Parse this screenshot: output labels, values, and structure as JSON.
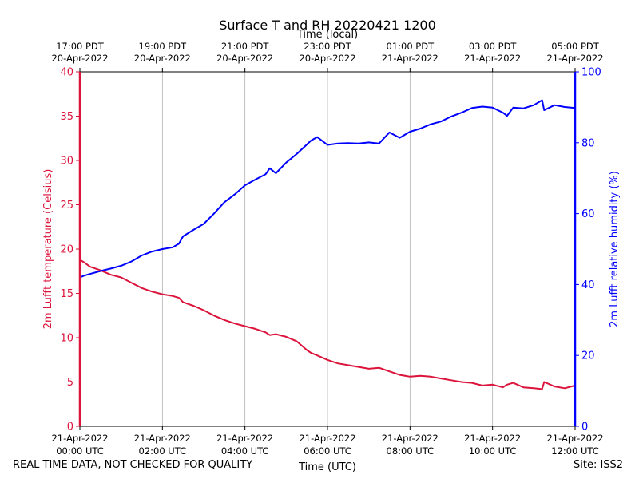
{
  "chart_data": {
    "type": "line",
    "title": "Surface T and RH 20220421 1200",
    "xlabel_bottom": "Time (UTC)",
    "xlabel_top": "Time (local)",
    "ylabel_left": "2m Lufft temperature (Celsius)",
    "ylabel_right": "2m Lufft relative humidity (%)",
    "x_unit": "hours since 21-Apr-2022 00:00 UTC",
    "xlim": [
      0,
      12
    ],
    "ylim_left": [
      0,
      40
    ],
    "ylim_right": [
      0,
      100
    ],
    "y_left_ticks": [
      "0",
      "5",
      "10",
      "15",
      "20",
      "25",
      "30",
      "35",
      "40"
    ],
    "y_right_ticks": [
      "0",
      "20",
      "40",
      "60",
      "80",
      "100"
    ],
    "x_bottom_ticks": [
      {
        "x": 0,
        "line1": "21-Apr-2022",
        "line2": "00:00 UTC"
      },
      {
        "x": 2,
        "line1": "21-Apr-2022",
        "line2": "02:00 UTC"
      },
      {
        "x": 4,
        "line1": "21-Apr-2022",
        "line2": "04:00 UTC"
      },
      {
        "x": 6,
        "line1": "21-Apr-2022",
        "line2": "06:00 UTC"
      },
      {
        "x": 8,
        "line1": "21-Apr-2022",
        "line2": "08:00 UTC"
      },
      {
        "x": 10,
        "line1": "21-Apr-2022",
        "line2": "10:00 UTC"
      },
      {
        "x": 12,
        "line1": "21-Apr-2022",
        "line2": "12:00 UTC"
      }
    ],
    "x_top_ticks": [
      {
        "x": 0,
        "line1": "17:00 PDT",
        "line2": "20-Apr-2022"
      },
      {
        "x": 2,
        "line1": "19:00 PDT",
        "line2": "20-Apr-2022"
      },
      {
        "x": 4,
        "line1": "21:00 PDT",
        "line2": "20-Apr-2022"
      },
      {
        "x": 6,
        "line1": "23:00 PDT",
        "line2": "20-Apr-2022"
      },
      {
        "x": 8,
        "line1": "01:00 PDT",
        "line2": "21-Apr-2022"
      },
      {
        "x": 10,
        "line1": "03:00 PDT",
        "line2": "21-Apr-2022"
      },
      {
        "x": 12,
        "line1": "05:00 PDT",
        "line2": "21-Apr-2022"
      }
    ],
    "grid": "vertical",
    "series": [
      {
        "name": "2m Lufft temperature",
        "axis": "left",
        "color": "#dc143c",
        "x": [
          0,
          0.1,
          0.25,
          0.5,
          0.75,
          1.0,
          1.25,
          1.5,
          1.75,
          2.0,
          2.25,
          2.4,
          2.5,
          2.75,
          3.0,
          3.25,
          3.5,
          3.75,
          4.0,
          4.25,
          4.5,
          4.6,
          4.75,
          5.0,
          5.25,
          5.5,
          5.6,
          5.75,
          6.0,
          6.25,
          6.5,
          6.75,
          7.0,
          7.25,
          7.5,
          7.75,
          8.0,
          8.25,
          8.5,
          8.75,
          9.0,
          9.25,
          9.5,
          9.75,
          10.0,
          10.25,
          10.35,
          10.5,
          10.75,
          11.0,
          11.2,
          11.25,
          11.5,
          11.75,
          12.0
        ],
        "values": [
          18.8,
          18.5,
          18.0,
          17.6,
          17.1,
          16.8,
          16.2,
          15.6,
          15.2,
          14.9,
          14.7,
          14.5,
          14.0,
          13.6,
          13.1,
          12.5,
          12.0,
          11.6,
          11.3,
          11.0,
          10.6,
          10.3,
          10.4,
          10.1,
          9.6,
          8.6,
          8.3,
          8.0,
          7.5,
          7.1,
          6.9,
          6.7,
          6.5,
          6.6,
          6.2,
          5.8,
          5.6,
          5.7,
          5.6,
          5.4,
          5.2,
          5.0,
          4.9,
          4.6,
          4.7,
          4.4,
          4.7,
          4.9,
          4.4,
          4.3,
          4.2,
          5.0,
          4.5,
          4.3,
          4.6
        ]
      },
      {
        "name": "2m Lufft relative humidity",
        "axis": "right",
        "color": "#0000ff",
        "x": [
          0,
          0.1,
          0.25,
          0.5,
          0.75,
          1.0,
          1.25,
          1.5,
          1.75,
          2.0,
          2.25,
          2.4,
          2.5,
          2.75,
          3.0,
          3.25,
          3.5,
          3.75,
          4.0,
          4.25,
          4.5,
          4.6,
          4.75,
          5.0,
          5.25,
          5.5,
          5.6,
          5.75,
          6.0,
          6.25,
          6.5,
          6.75,
          7.0,
          7.25,
          7.5,
          7.75,
          8.0,
          8.25,
          8.5,
          8.75,
          9.0,
          9.25,
          9.5,
          9.75,
          10.0,
          10.25,
          10.35,
          10.5,
          10.75,
          11.0,
          11.2,
          11.25,
          11.5,
          11.75,
          12.0
        ],
        "values": [
          42,
          42.5,
          43,
          43.8,
          44.5,
          45.3,
          46.5,
          48.2,
          49.3,
          50,
          50.5,
          51.5,
          53.6,
          55.4,
          57.1,
          60,
          63.2,
          65.4,
          68,
          69.6,
          71.1,
          72.8,
          71.4,
          74.4,
          76.8,
          79.5,
          80.6,
          81.6,
          79.4,
          79.8,
          79.9,
          79.8,
          80.1,
          79.8,
          82.9,
          81.4,
          83.1,
          84,
          85.2,
          86,
          87.4,
          88.5,
          89.8,
          90.2,
          89.9,
          88.5,
          87.6,
          89.9,
          89.7,
          90.6,
          92,
          89.2,
          90.6,
          90.1,
          89.8
        ]
      }
    ]
  },
  "footer": {
    "disclaimer": "REAL TIME DATA, NOT CHECKED FOR QUALITY",
    "site": "Site: ISS2"
  }
}
